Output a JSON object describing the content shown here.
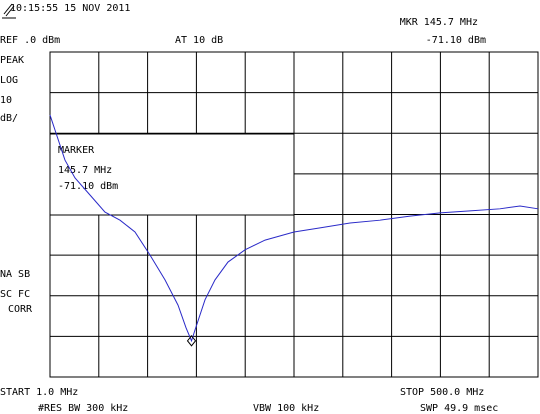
{
  "chart_data": {
    "type": "line",
    "timestamp": "10:15:55  15 NOV 2011",
    "ref_level": "REF .0 dBm",
    "attenuation": "AT 10 dB",
    "marker_readout": {
      "frequency": "MKR 145.7 MHz",
      "level": "-71.10 dBm"
    },
    "left_labels_top": [
      "PEAK",
      "LOG",
      "10",
      "dB/"
    ],
    "left_labels_bottom": [
      "NA SB",
      "SC FC",
      "CORR"
    ],
    "marker_box": {
      "title": "MARKER",
      "frequency": "145.7 MHz",
      "level": "-71.10 dBm"
    },
    "start": "START 1.0 MHz",
    "stop": "STOP 500.0 MHz",
    "rbw": "#RES BW 300 kHz",
    "vbw": "VBW 100 kHz",
    "sweep": "SWP 49.9 msec",
    "color": "#2a2ac8",
    "x": [
      1,
      6.1,
      16.3,
      26.6,
      41.9,
      57.2,
      72.6,
      87.9,
      103.3,
      118.6,
      131.9,
      140.1,
      145.7,
      149.3,
      159.5,
      169.7,
      183.0,
      200.4,
      220.9,
      250.5,
      277.1,
      307.8,
      338.4,
      369.1,
      399.8,
      430.4,
      461.1,
      481.6,
      500
    ],
    "values": [
      -15.5,
      -19.2,
      -26.6,
      -31.0,
      -35.2,
      -39.4,
      -41.4,
      -44.3,
      -50.0,
      -56.1,
      -62.3,
      -67.9,
      -71.1,
      -68.4,
      -61.0,
      -56.1,
      -51.7,
      -48.7,
      -46.3,
      -44.3,
      -43.3,
      -42.1,
      -41.4,
      -40.4,
      -39.6,
      -39.1,
      -38.6,
      -37.9,
      -38.6
    ],
    "marker": {
      "x": 145.7,
      "y": -71.1
    },
    "xlim": [
      1,
      500
    ],
    "ylim": [
      -80,
      0
    ],
    "xticks": [
      1,
      50.9,
      100.8,
      150.7,
      200.6,
      250.5,
      300.4,
      350.3,
      400.2,
      450.1,
      500
    ],
    "yticks": [
      -80,
      -70,
      -60,
      -50,
      -40,
      -30,
      -20,
      -10,
      0
    ],
    "grid": true
  }
}
